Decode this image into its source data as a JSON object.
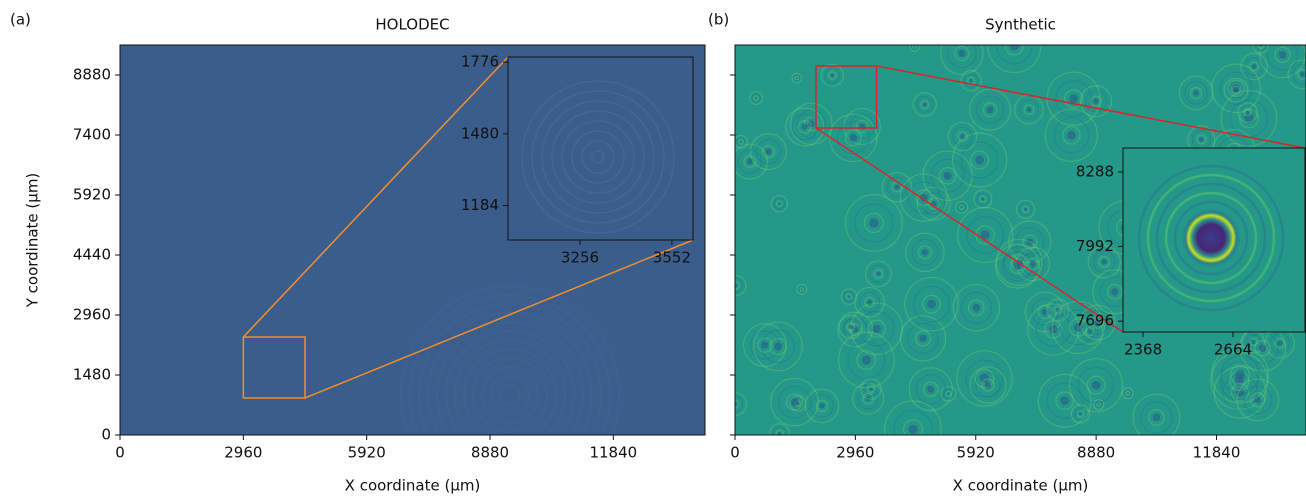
{
  "chart_data": [
    {
      "type": "image",
      "panel_label": "(a)",
      "title": "HOLODEC",
      "xlabel": "X coordinate (μm)",
      "ylabel": "Y coordinate (μm)",
      "xlim": [
        0,
        14040
      ],
      "ylim": [
        0,
        9620
      ],
      "xticks": [
        0,
        2960,
        5920,
        8880,
        11840
      ],
      "yticks": [
        0,
        1480,
        2960,
        4440,
        5920,
        7400,
        8880
      ],
      "image_color": "#3a5d8c",
      "box_color": "#f28e2b",
      "connectors": [
        "top-left",
        "bottom-right"
      ],
      "zoom_box": {
        "xlim": [
          2960,
          4440
        ],
        "ylim": [
          913,
          2417
        ]
      },
      "inset": {
        "xlim": [
          3024,
          3620
        ],
        "ylim": [
          1042,
          1797
        ],
        "xticks": [
          3256,
          3552
        ],
        "yticks": [
          1184,
          1480,
          1776
        ]
      }
    },
    {
      "type": "image",
      "panel_label": "(b)",
      "title": "Synthetic",
      "xlabel": "X coordinate (μm)",
      "sharey": true,
      "xlim": [
        0,
        14040
      ],
      "ylim": [
        0,
        9620
      ],
      "xticks": [
        0,
        2960,
        5920,
        8880,
        11840
      ],
      "yticks": [
        0,
        1480,
        2960,
        4440,
        5920,
        7400,
        8880
      ],
      "image_color": "#24998a",
      "box_color": "#d62728",
      "connectors": [
        "top-right",
        "bottom-left"
      ],
      "zoom_box": {
        "xlim": [
          1992,
          3480
        ],
        "ylim": [
          7573,
          9102
        ]
      },
      "inset": {
        "xlim": [
          2302,
          2901
        ],
        "ylim": [
          7653,
          8383
        ],
        "xticks": [
          2368,
          2664
        ],
        "yticks": [
          7696,
          7992,
          8288
        ]
      }
    }
  ]
}
